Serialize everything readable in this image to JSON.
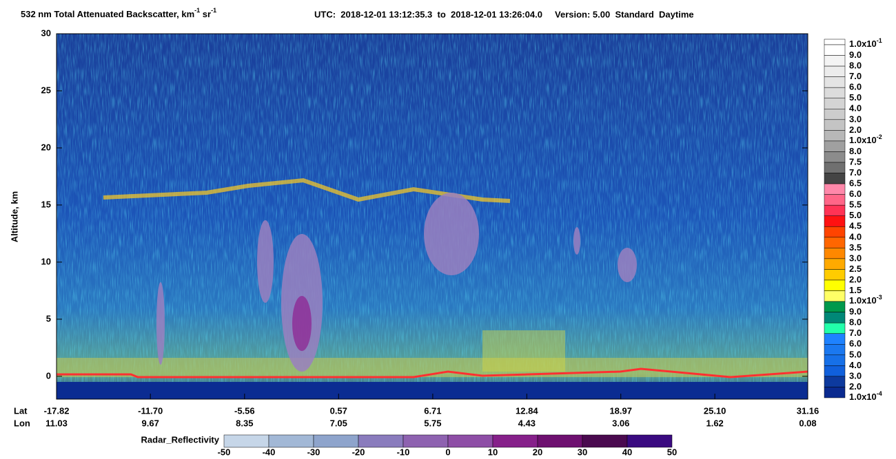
{
  "chart_data": {
    "type": "curtain",
    "title_parts": [
      "532 nm Total Attenuated Backscatter, km",
      "-1",
      " sr",
      "-1"
    ],
    "subtitle": "UTC:  2018-12-01 13:12:35.3  to  2018-12-01 13:26:04.0     Version: 5.00  Standard  Daytime",
    "ylabel": "Altitude, km",
    "ylim": [
      -2,
      30
    ],
    "yticks": [
      0,
      5,
      10,
      15,
      20,
      25,
      30
    ],
    "xlabel_lat": "Lat",
    "xlabel_lon": "Lon",
    "xlim": [
      -17.82,
      31.16
    ],
    "xticks": [
      -17.82,
      -11.7,
      -5.56,
      0.57,
      6.71,
      12.84,
      18.97,
      25.1,
      31.16
    ],
    "xtick_labels": [
      "-17.82",
      "-11.70",
      "-5.56",
      "0.57",
      "6.71",
      "12.84",
      "18.97",
      "25.10",
      "31.16"
    ],
    "lon_labels": [
      "11.03",
      "9.67",
      "8.35",
      "7.05",
      "5.75",
      "4.43",
      "3.06",
      "1.62",
      "0.08"
    ],
    "colorbar": {
      "labels": [
        {
          "text": "1.0x10",
          "sup": "-1"
        },
        "9.0",
        "8.0",
        "7.0",
        "6.0",
        "5.0",
        "4.0",
        "3.0",
        "2.0",
        {
          "text": "1.0x10",
          "sup": "-2"
        },
        "8.0",
        "7.5",
        "7.0",
        "6.5",
        "6.0",
        "5.5",
        "5.0",
        "4.5",
        "4.0",
        "3.5",
        "3.0",
        "2.5",
        "2.0",
        "1.5",
        {
          "text": "1.0x10",
          "sup": "-3"
        },
        "9.0",
        "8.0",
        "7.0",
        "6.0",
        "5.0",
        "4.0",
        "3.0",
        "2.0",
        {
          "text": "1.0x10",
          "sup": "-4"
        }
      ],
      "colors": [
        "#ffffff",
        "#f4f4f4",
        "#ececec",
        "#e4e4e4",
        "#dcdcdc",
        "#d4d4d4",
        "#cccccc",
        "#c4c4c4",
        "#b8b8b8",
        "#a0a0a0",
        "#8c8c8c",
        "#707070",
        "#444444",
        "#ff88aa",
        "#ff6688",
        "#ff3355",
        "#ff1111",
        "#ff4400",
        "#ff6600",
        "#ff8800",
        "#ffaa00",
        "#ffcc00",
        "#ffff00",
        "#ffff66",
        "#00994c",
        "#008877",
        "#22ffaa",
        "#1e82ff",
        "#1a78f0",
        "#1670e8",
        "#1060dc",
        "#0d3a9e",
        "#0a2a8f"
      ]
    },
    "radar_colorbar": {
      "title": "Radar_Reflectivity",
      "ticks": [
        -50,
        -40,
        -30,
        -20,
        -10,
        0,
        10,
        20,
        30,
        40,
        50
      ],
      "colors": [
        "#c6d6e8",
        "#a2b8d6",
        "#8ea4cc",
        "#8a7cbd",
        "#8e62b0",
        "#8e4ea6",
        "#86208a",
        "#6e1070",
        "#4a0a4f",
        "#3a0a80"
      ]
    }
  }
}
